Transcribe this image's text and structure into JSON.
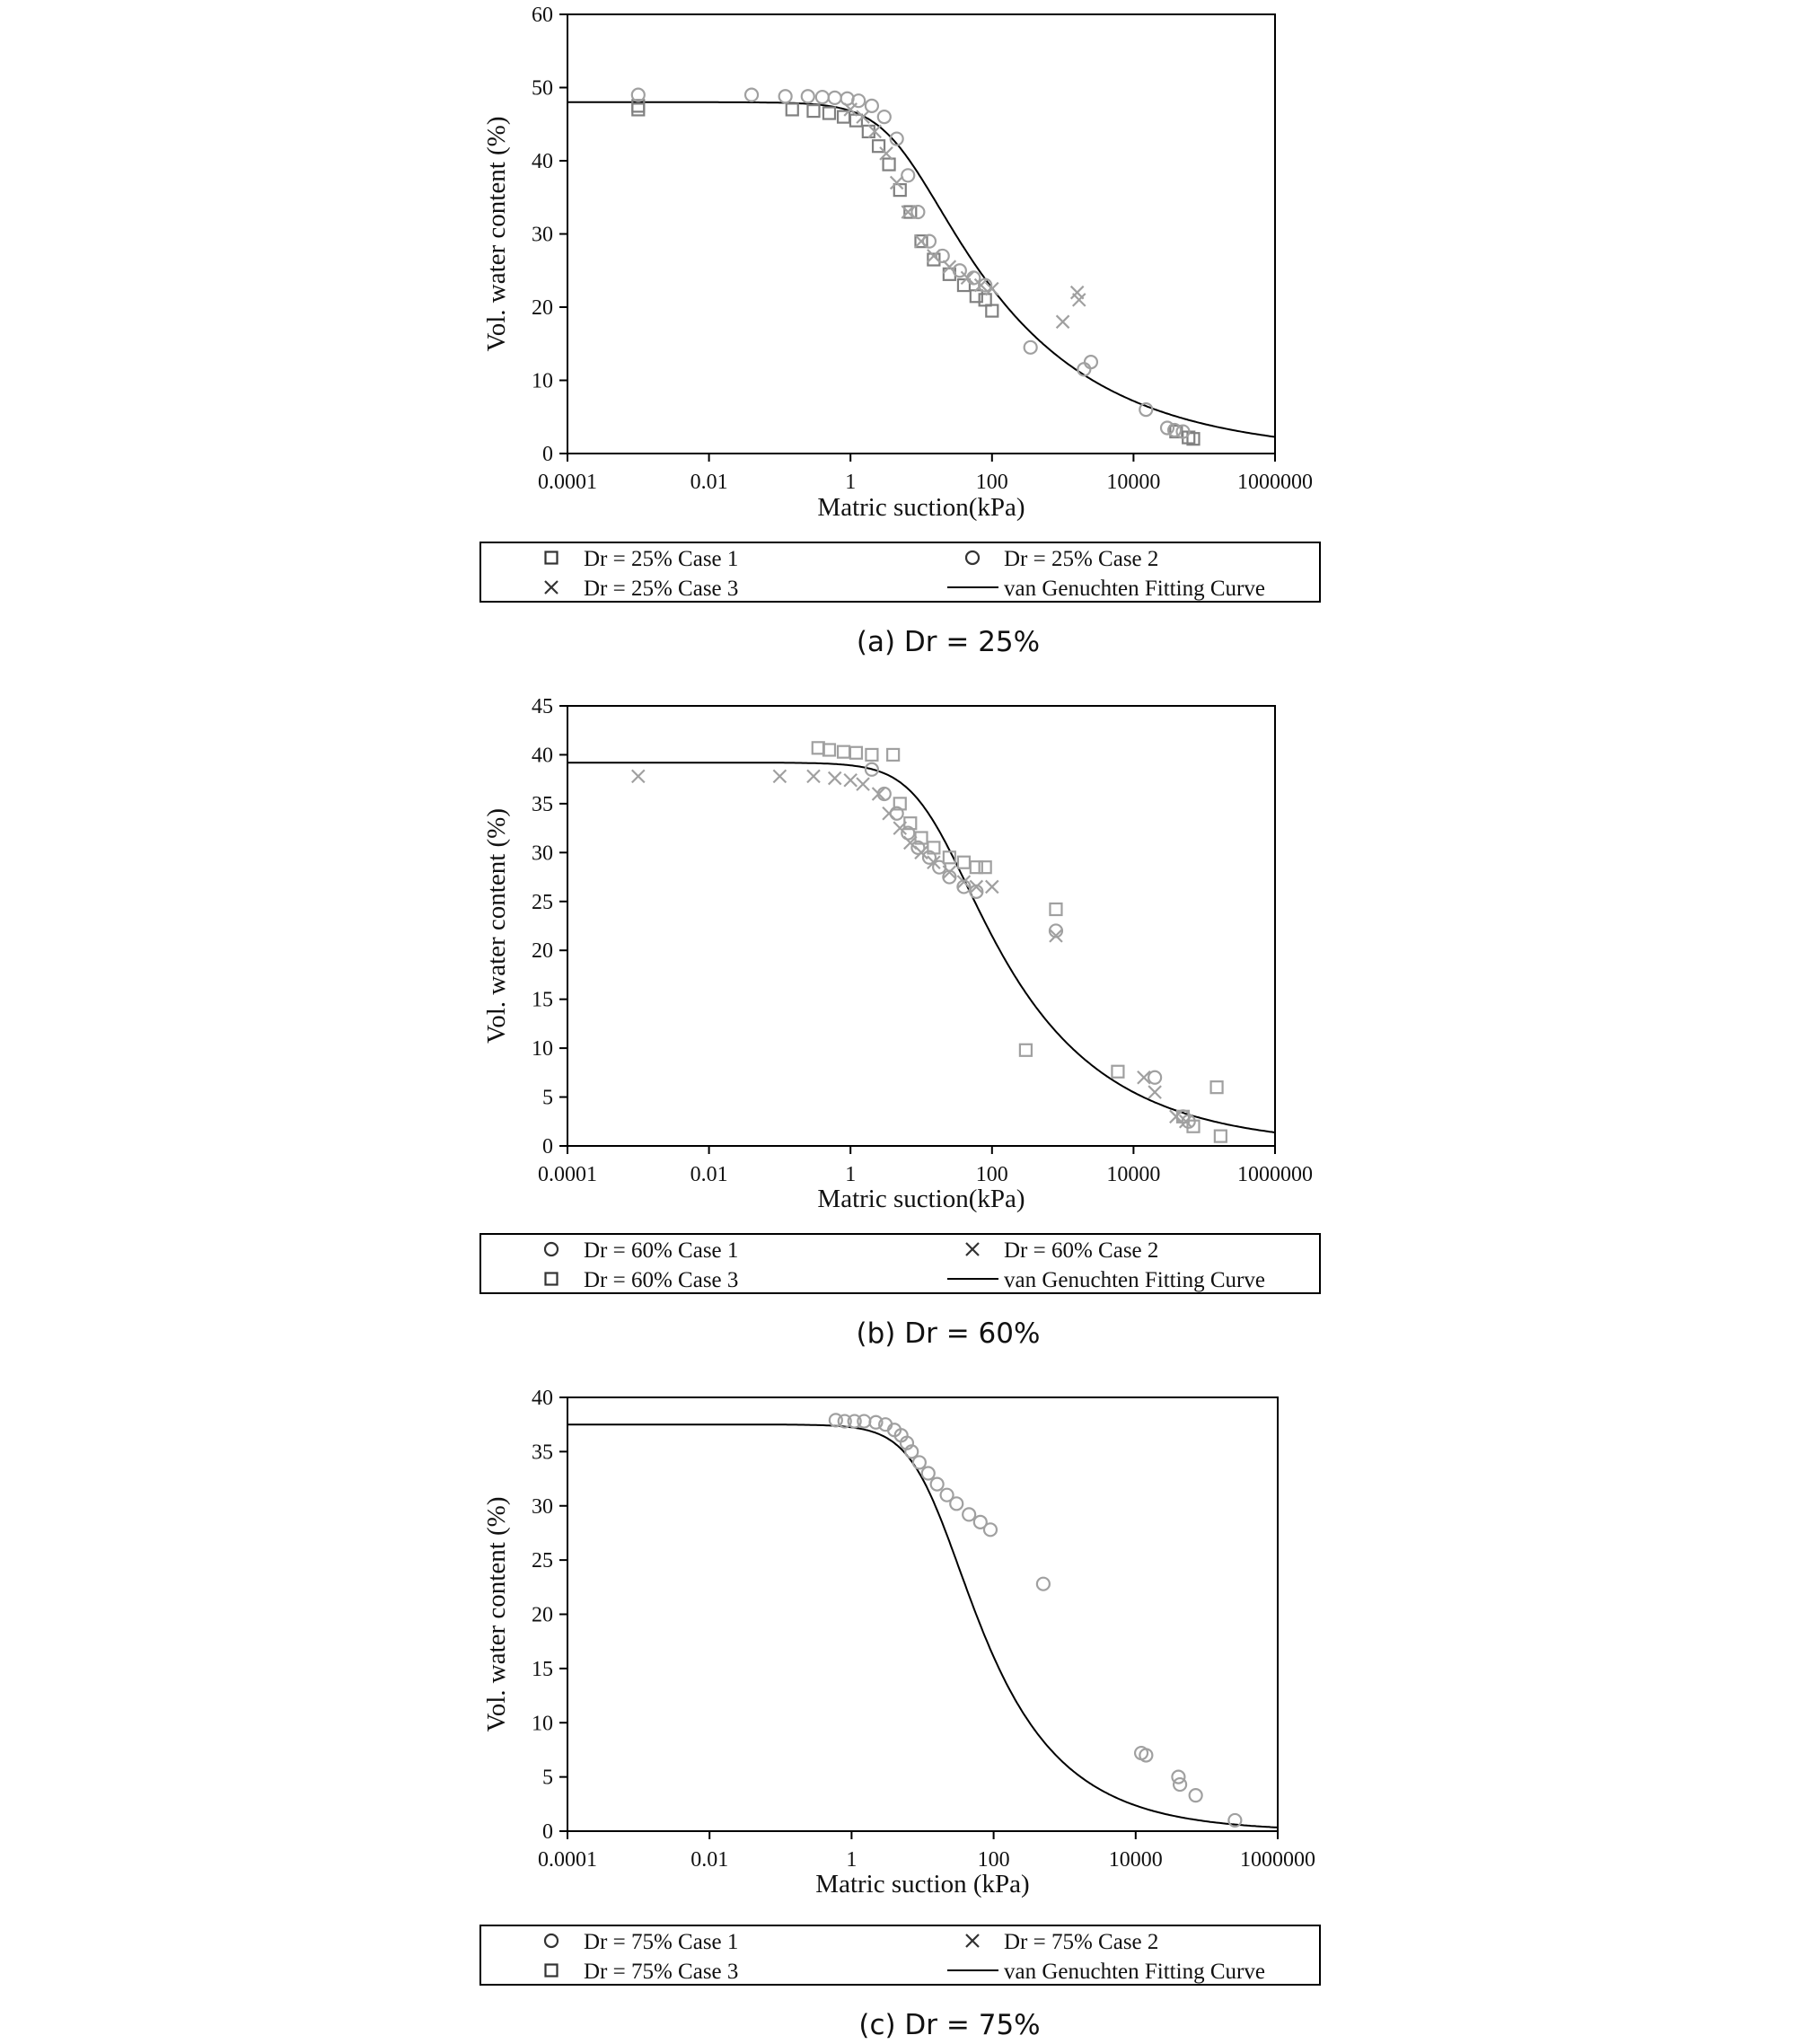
{
  "chart_data": [
    {
      "type": "scatter",
      "caption": "(a) Dr = 25%",
      "xlabel": "Matric suction(kPa)",
      "ylabel": "Vol. water content (%)",
      "xscale": "log",
      "xlim": [
        0.0001,
        1000000
      ],
      "ylim": [
        0,
        60
      ],
      "xticks": [
        0.0001,
        0.01,
        1,
        100,
        10000,
        1000000
      ],
      "xtick_labels": [
        "0.0001",
        "0.01",
        "1",
        "100",
        "10000",
        "1000000"
      ],
      "yticks": [
        0,
        10,
        20,
        30,
        40,
        50,
        60
      ],
      "grid": false,
      "legend_placement": "below",
      "fit": {
        "name": "van Genuchten Fitting Curve",
        "theta_r": 0,
        "theta_s": 48,
        "alpha": 0.2,
        "n": 1.25
      },
      "series": [
        {
          "name": "Dr = 25% Case 1",
          "marker": "square",
          "color": "#808080",
          "points": [
            [
              0.001,
              47
            ],
            [
              0.001,
              47.5
            ],
            [
              0.15,
              47
            ],
            [
              0.3,
              46.8
            ],
            [
              0.5,
              46.5
            ],
            [
              0.8,
              46
            ],
            [
              1.2,
              45.5
            ],
            [
              1.8,
              44
            ],
            [
              2.5,
              42
            ],
            [
              3.5,
              39.5
            ],
            [
              5,
              36
            ],
            [
              7,
              33
            ],
            [
              10,
              29
            ],
            [
              15,
              26.5
            ],
            [
              25,
              24.5
            ],
            [
              40,
              23
            ],
            [
              60,
              21.5
            ],
            [
              80,
              21
            ],
            [
              100,
              19.5
            ],
            [
              40000,
              3
            ],
            [
              60000,
              2.2
            ],
            [
              70000,
              2
            ]
          ]
        },
        {
          "name": "Dr = 25% Case 2",
          "marker": "circle",
          "color": "#a0a0a0",
          "points": [
            [
              0.001,
              49
            ],
            [
              0.04,
              49
            ],
            [
              0.12,
              48.8
            ],
            [
              0.25,
              48.8
            ],
            [
              0.4,
              48.7
            ],
            [
              0.6,
              48.6
            ],
            [
              0.9,
              48.5
            ],
            [
              1.3,
              48.2
            ],
            [
              2,
              47.5
            ],
            [
              3,
              46
            ],
            [
              4.5,
              43
            ],
            [
              6.5,
              38
            ],
            [
              9,
              33
            ],
            [
              13,
              29
            ],
            [
              20,
              27
            ],
            [
              35,
              25
            ],
            [
              55,
              24
            ],
            [
              80,
              23
            ],
            [
              350,
              14.5
            ],
            [
              2500,
              12.5
            ],
            [
              2000,
              11.5
            ],
            [
              15000,
              6
            ],
            [
              30000,
              3.5
            ],
            [
              38000,
              3.2
            ],
            [
              50000,
              3
            ]
          ]
        },
        {
          "name": "Dr = 25% Case 3",
          "marker": "x",
          "color": "#a0a0a0",
          "points": [
            [
              1,
              47
            ],
            [
              1.5,
              46
            ],
            [
              2.2,
              44
            ],
            [
              3.2,
              41
            ],
            [
              4.5,
              37
            ],
            [
              6.5,
              33
            ],
            [
              10,
              29
            ],
            [
              15,
              27
            ],
            [
              25,
              25.5
            ],
            [
              45,
              24
            ],
            [
              70,
              23
            ],
            [
              100,
              22.5
            ],
            [
              1000,
              18
            ],
            [
              1600,
              22
            ],
            [
              1700,
              21
            ]
          ]
        }
      ]
    },
    {
      "type": "scatter",
      "caption": "(b) Dr = 60%",
      "xlabel": "Matric suction(kPa)",
      "ylabel": "Vol. water content (%)",
      "xscale": "log",
      "xlim": [
        0.0001,
        1000000
      ],
      "ylim": [
        0,
        45
      ],
      "xticks": [
        0.0001,
        0.01,
        1,
        100,
        10000,
        1000000
      ],
      "xtick_labels": [
        "0.0001",
        "0.01",
        "1",
        "100",
        "10000",
        "1000000"
      ],
      "yticks": [
        0,
        5,
        10,
        15,
        20,
        25,
        30,
        35,
        40,
        45
      ],
      "grid": false,
      "legend_placement": "below",
      "fit": {
        "name": "van Genuchten Fitting Curve",
        "theta_r": 0,
        "theta_s": 39.2,
        "alpha": 0.07,
        "n": 1.3
      },
      "series": [
        {
          "name": "Dr = 60% Case 1",
          "marker": "circle",
          "color": "#a0a0a0",
          "points": [
            [
              2,
              38.5
            ],
            [
              3,
              36
            ],
            [
              4.5,
              34
            ],
            [
              6.5,
              32
            ],
            [
              9,
              30.5
            ],
            [
              13,
              29.5
            ],
            [
              18,
              28.5
            ],
            [
              25,
              27.5
            ],
            [
              40,
              26.5
            ],
            [
              60,
              26
            ],
            [
              800,
              22
            ],
            [
              20000,
              7
            ],
            [
              50000,
              3
            ],
            [
              60000,
              2.5
            ]
          ]
        },
        {
          "name": "Dr = 60% Case 2",
          "marker": "x",
          "color": "#a0a0a0",
          "points": [
            [
              0.001,
              37.8
            ],
            [
              0.1,
              37.8
            ],
            [
              0.3,
              37.8
            ],
            [
              0.6,
              37.6
            ],
            [
              1,
              37.4
            ],
            [
              1.5,
              37
            ],
            [
              2.5,
              36
            ],
            [
              3.5,
              34
            ],
            [
              5,
              32.5
            ],
            [
              7,
              31
            ],
            [
              10,
              30
            ],
            [
              15,
              29
            ],
            [
              25,
              28
            ],
            [
              40,
              27
            ],
            [
              60,
              26.5
            ],
            [
              100,
              26.5
            ],
            [
              800,
              21.5
            ],
            [
              14000,
              7
            ],
            [
              20000,
              5.5
            ],
            [
              40000,
              3
            ],
            [
              55000,
              2.5
            ]
          ]
        },
        {
          "name": "Dr = 60% Case 3",
          "marker": "square",
          "color": "#a0a0a0",
          "points": [
            [
              0.35,
              40.7
            ],
            [
              0.5,
              40.5
            ],
            [
              0.8,
              40.3
            ],
            [
              1.2,
              40.2
            ],
            [
              2,
              40
            ],
            [
              4,
              40
            ],
            [
              5,
              35
            ],
            [
              7,
              33
            ],
            [
              10,
              31.5
            ],
            [
              15,
              30.5
            ],
            [
              25,
              29.5
            ],
            [
              40,
              29
            ],
            [
              60,
              28.5
            ],
            [
              80,
              28.5
            ],
            [
              800,
              24.2
            ],
            [
              300,
              9.8
            ],
            [
              6000,
              7.6
            ],
            [
              50000,
              3
            ],
            [
              70000,
              2
            ],
            [
              150000,
              6
            ],
            [
              170000,
              1
            ]
          ]
        }
      ]
    },
    {
      "type": "scatter",
      "caption": "(c) Dr = 75%",
      "xlabel": "Matric suction (kPa)",
      "ylabel": "Vol. water content (%)",
      "xscale": "log",
      "xlim": [
        0.0001,
        1000000
      ],
      "ylim": [
        0,
        40
      ],
      "xticks": [
        0.0001,
        0.01,
        1,
        100,
        10000,
        1000000
      ],
      "xtick_labels": [
        "0.0001",
        "0.01",
        "1",
        "100",
        "10000",
        "1000000"
      ],
      "yticks": [
        0,
        5,
        10,
        15,
        20,
        25,
        30,
        35,
        40
      ],
      "grid": false,
      "legend_placement": "below",
      "fit": {
        "name": "van Genuchten Fitting Curve",
        "theta_r": 0,
        "theta_s": 37.5,
        "alpha": 0.072,
        "n": 1.42
      },
      "series": [
        {
          "name": "Dr = 75% Case 1",
          "marker": "circle",
          "color": "#a0a0a0",
          "points": [
            [
              0.6,
              37.9
            ],
            [
              0.8,
              37.8
            ],
            [
              1.1,
              37.8
            ],
            [
              1.5,
              37.8
            ],
            [
              2.2,
              37.7
            ],
            [
              3,
              37.5
            ],
            [
              4,
              37
            ],
            [
              5,
              36.5
            ],
            [
              6,
              35.8
            ],
            [
              7,
              35
            ],
            [
              9,
              34
            ],
            [
              12,
              33
            ],
            [
              16,
              32
            ],
            [
              22,
              31
            ],
            [
              30,
              30.2
            ],
            [
              45,
              29.2
            ],
            [
              65,
              28.5
            ],
            [
              90,
              27.8
            ],
            [
              500,
              22.8
            ],
            [
              12000,
              7.2
            ],
            [
              14000,
              7
            ],
            [
              40000,
              5
            ],
            [
              42000,
              4.3
            ],
            [
              70000,
              3.3
            ],
            [
              250000,
              1
            ]
          ]
        },
        {
          "name": "Dr = 75% Case 2",
          "marker": "x",
          "color": "#a0a0a0",
          "points": []
        },
        {
          "name": "Dr = 75% Case 3",
          "marker": "square",
          "color": "#a0a0a0",
          "points": []
        }
      ]
    }
  ]
}
